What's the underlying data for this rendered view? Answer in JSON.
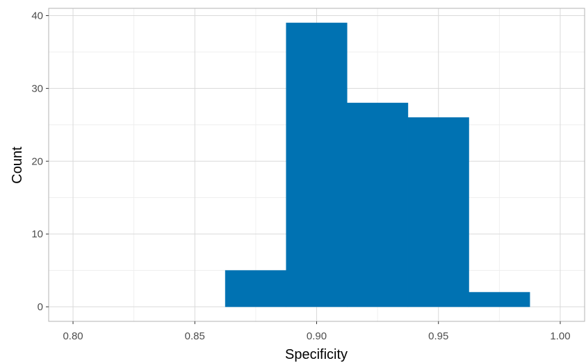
{
  "chart_data": {
    "type": "bar",
    "subtype": "histogram",
    "title": "",
    "xlabel": "Specificity",
    "ylabel": "Count",
    "xlim": [
      0.79,
      1.01
    ],
    "ylim": [
      -2,
      41
    ],
    "x_ticks": [
      0.8,
      0.85,
      0.9,
      0.95,
      1.0
    ],
    "x_tick_labels": [
      "0.80",
      "0.85",
      "0.90",
      "0.95",
      "1.00"
    ],
    "y_ticks": [
      0,
      10,
      20,
      30,
      40
    ],
    "y_tick_labels": [
      "0",
      "10",
      "20",
      "30",
      "40"
    ],
    "bin_width": 0.025,
    "bins": [
      {
        "x_start": 0.8625,
        "x_end": 0.8875,
        "count": 5
      },
      {
        "x_start": 0.8875,
        "x_end": 0.9125,
        "count": 39
      },
      {
        "x_start": 0.9125,
        "x_end": 0.9375,
        "count": 28
      },
      {
        "x_start": 0.9375,
        "x_end": 0.9625,
        "count": 26
      },
      {
        "x_start": 0.9625,
        "x_end": 0.9875,
        "count": 2
      }
    ],
    "bar_color": "#0072B2",
    "grid": true,
    "grid_color": "#d9d9d9",
    "panel_border_color": "#b3b3b3",
    "legend": "none"
  }
}
